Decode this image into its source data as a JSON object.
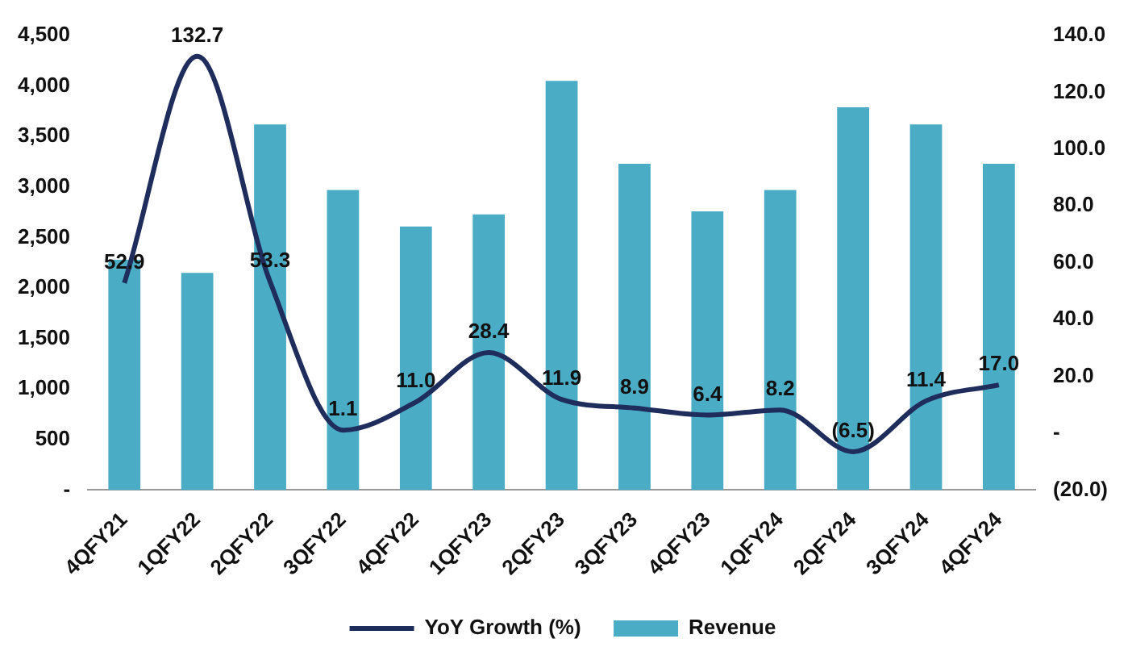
{
  "chart_data": {
    "type": "bar",
    "categories": [
      "4QFY21",
      "1QFY22",
      "2QFY22",
      "3QFY22",
      "4QFY22",
      "1QFY23",
      "2QFY23",
      "3QFY23",
      "4QFY23",
      "1QFY24",
      "2QFY24",
      "3QFY24",
      "4QFY24"
    ],
    "series": [
      {
        "name": "Revenue",
        "color": "#4bacc6",
        "values": [
          2280,
          2150,
          3620,
          2970,
          2610,
          2730,
          4050,
          3230,
          2760,
          2970,
          3790,
          3620,
          3230
        ]
      },
      {
        "name": "YoY Growth (%)",
        "type": "line",
        "axis": "y2",
        "color": "#1f2d5c",
        "values": [
          52.9,
          132.7,
          53.3,
          1.1,
          11.0,
          28.4,
          11.9,
          8.9,
          6.4,
          8.2,
          -6.5,
          11.4,
          17.0
        ],
        "value_labels": [
          "52.9",
          "132.7",
          "53.3",
          "1.1",
          "11.0",
          "28.4",
          "11.9",
          "8.9",
          "6.4",
          "8.2",
          "(6.5)",
          "11.4",
          "17.0"
        ]
      }
    ],
    "ylim": [
      0,
      4500
    ],
    "yticks": [
      {
        "value": 0,
        "label": "-"
      },
      {
        "value": 500,
        "label": "500"
      },
      {
        "value": 1000,
        "label": "1,000"
      },
      {
        "value": 1500,
        "label": "1,500"
      },
      {
        "value": 2000,
        "label": "2,000"
      },
      {
        "value": 2500,
        "label": "2,500"
      },
      {
        "value": 3000,
        "label": "3,000"
      },
      {
        "value": 3500,
        "label": "3,500"
      },
      {
        "value": 4000,
        "label": "4,000"
      },
      {
        "value": 4500,
        "label": "4,500"
      }
    ],
    "y2lim": [
      -20,
      140
    ],
    "y2ticks": [
      {
        "value": -20,
        "label": "(20.0)"
      },
      {
        "value": 0,
        "label": "-"
      },
      {
        "value": 20,
        "label": "20.0"
      },
      {
        "value": 40,
        "label": "40.0"
      },
      {
        "value": 60,
        "label": "60.0"
      },
      {
        "value": 80,
        "label": "80.0"
      },
      {
        "value": 100,
        "label": "100.0"
      },
      {
        "value": 120,
        "label": "120.0"
      },
      {
        "value": 140,
        "label": "140.0"
      }
    ],
    "grid": false,
    "legend": "bottom",
    "marker": "none",
    "line_style": "solid"
  }
}
